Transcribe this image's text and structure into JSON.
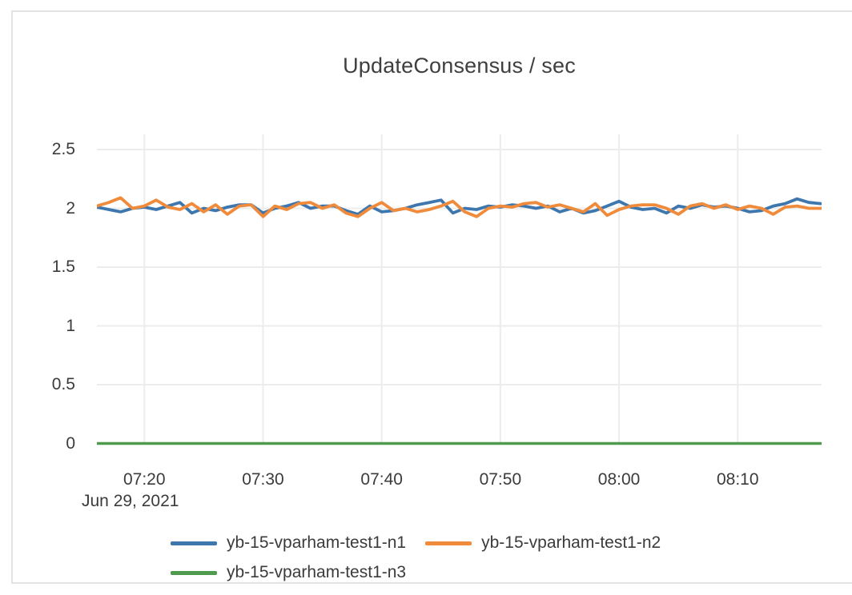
{
  "chart": {
    "title": "UpdateConsensus / sec",
    "date_label": "Jun 29, 2021"
  },
  "colors": {
    "series_blue": "#3e76ae",
    "series_orange": "#ef8b3b",
    "series_green": "#4e9b4e",
    "grid": "#ececec",
    "axis_text": "#3b3b3b",
    "title_text": "#3f3f3f",
    "card_border": "#e3e3e3",
    "background": "#ffffff"
  },
  "chart_data": {
    "type": "line",
    "title": "UpdateConsensus / sec",
    "xlabel": "",
    "ylabel": "",
    "grid": true,
    "legend_position": "bottom",
    "ylim": [
      0,
      2.63
    ],
    "y_ticks": [
      0,
      0.5,
      1,
      1.5,
      2,
      2.5
    ],
    "y_tick_labels": [
      "0",
      "0.5",
      "1",
      "1.5",
      "2",
      "2.5"
    ],
    "x_tick_labels": [
      "07:20",
      "07:30",
      "07:40",
      "07:50",
      "08:00",
      "08:10"
    ],
    "x_date_label": "Jun 29, 2021",
    "times": [
      "07:16",
      "07:17",
      "07:18",
      "07:19",
      "07:20",
      "07:21",
      "07:22",
      "07:23",
      "07:24",
      "07:25",
      "07:26",
      "07:27",
      "07:28",
      "07:29",
      "07:30",
      "07:31",
      "07:32",
      "07:33",
      "07:34",
      "07:35",
      "07:36",
      "07:37",
      "07:38",
      "07:39",
      "07:40",
      "07:41",
      "07:42",
      "07:43",
      "07:44",
      "07:45",
      "07:46",
      "07:47",
      "07:48",
      "07:49",
      "07:50",
      "07:51",
      "07:52",
      "07:53",
      "07:54",
      "07:55",
      "07:56",
      "07:57",
      "07:58",
      "07:59",
      "08:00",
      "08:01",
      "08:02",
      "08:03",
      "08:04",
      "08:05",
      "08:06",
      "08:07",
      "08:08",
      "08:09",
      "08:10",
      "08:11",
      "08:12",
      "08:13",
      "08:14",
      "08:15",
      "08:16",
      "08:17"
    ],
    "series": [
      {
        "name": "yb-15-vparham-test1-n1",
        "color": "#3e76ae",
        "values": [
          2.01,
          1.99,
          1.97,
          2.0,
          2.01,
          1.99,
          2.02,
          2.05,
          1.96,
          2.0,
          1.98,
          2.01,
          2.03,
          2.03,
          1.96,
          2.0,
          2.02,
          2.05,
          2.0,
          2.02,
          2.02,
          1.98,
          1.95,
          2.02,
          1.97,
          1.98,
          2.0,
          2.03,
          2.05,
          2.07,
          1.96,
          2.0,
          1.99,
          2.02,
          2.01,
          2.03,
          2.02,
          2.0,
          2.02,
          1.97,
          2.0,
          1.96,
          1.98,
          2.02,
          2.06,
          2.01,
          1.99,
          2.0,
          1.96,
          2.02,
          2.0,
          2.03,
          2.01,
          2.02,
          2.0,
          1.97,
          1.98,
          2.02,
          2.04,
          2.08,
          2.05,
          2.04
        ]
      },
      {
        "name": "yb-15-vparham-test1-n2",
        "color": "#ef8b3b",
        "values": [
          2.02,
          2.05,
          2.09,
          2.0,
          2.02,
          2.07,
          2.01,
          1.99,
          2.04,
          1.97,
          2.03,
          1.95,
          2.02,
          2.03,
          1.93,
          2.02,
          1.99,
          2.04,
          2.05,
          2.0,
          2.03,
          1.96,
          1.93,
          2.0,
          2.05,
          1.98,
          2.0,
          1.97,
          1.99,
          2.02,
          2.06,
          1.97,
          1.93,
          2.0,
          2.02,
          2.01,
          2.04,
          2.05,
          2.01,
          2.03,
          2.0,
          1.97,
          2.04,
          1.94,
          1.99,
          2.02,
          2.03,
          2.03,
          2.0,
          1.95,
          2.02,
          2.04,
          2.0,
          2.03,
          1.99,
          2.02,
          2.0,
          1.95,
          2.01,
          2.02,
          2.0,
          2.0
        ]
      },
      {
        "name": "yb-15-vparham-test1-n3",
        "color": "#4e9b4e",
        "values": [
          0,
          0,
          0,
          0,
          0,
          0,
          0,
          0,
          0,
          0,
          0,
          0,
          0,
          0,
          0,
          0,
          0,
          0,
          0,
          0,
          0,
          0,
          0,
          0,
          0,
          0,
          0,
          0,
          0,
          0,
          0,
          0,
          0,
          0,
          0,
          0,
          0,
          0,
          0,
          0,
          0,
          0,
          0,
          0,
          0,
          0,
          0,
          0,
          0,
          0,
          0,
          0,
          0,
          0,
          0,
          0,
          0,
          0,
          0,
          0,
          0,
          0
        ]
      }
    ]
  }
}
